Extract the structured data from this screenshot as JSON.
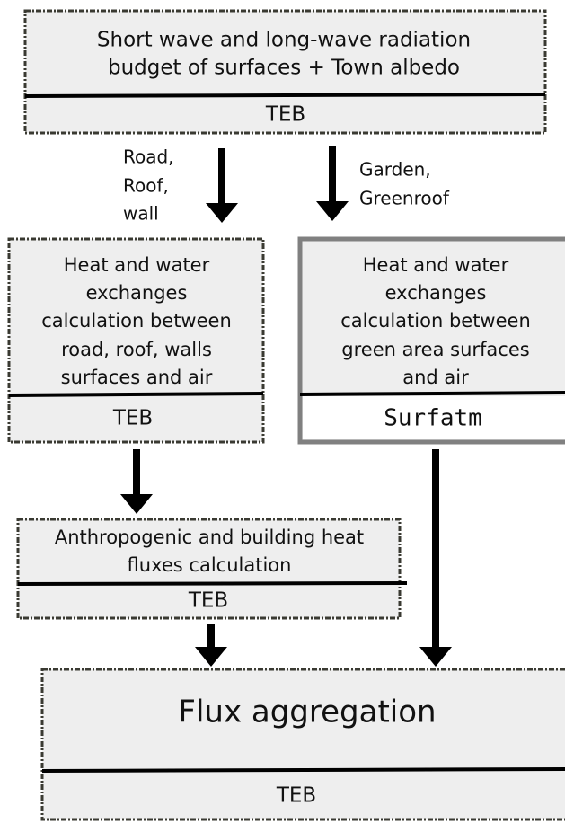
{
  "nodes": [
    {
      "text": [
        "Short wave and long-wave radiation",
        "budget of  surfaces + Town albedo"
      ],
      "model": "TEB"
    },
    {
      "text": [
        "Heat and water",
        "exchanges",
        "calculation between",
        "road, roof, walls",
        "surfaces and air"
      ],
      "model": "TEB"
    },
    {
      "text": [
        "Heat and water",
        "exchanges",
        "calculation between",
        "green area surfaces",
        "and air"
      ],
      "model": "Surfatm"
    },
    {
      "text": [
        "Anthropogenic and building heat",
        "fluxes calculation"
      ],
      "model": "TEB"
    },
    {
      "text": [
        "Flux aggregation"
      ],
      "model": "TEB"
    }
  ],
  "edges": [
    {
      "label": [
        "Road,",
        "Roof,",
        "wall"
      ]
    },
    {
      "label": [
        "Garden,",
        "Greenroof"
      ]
    }
  ]
}
